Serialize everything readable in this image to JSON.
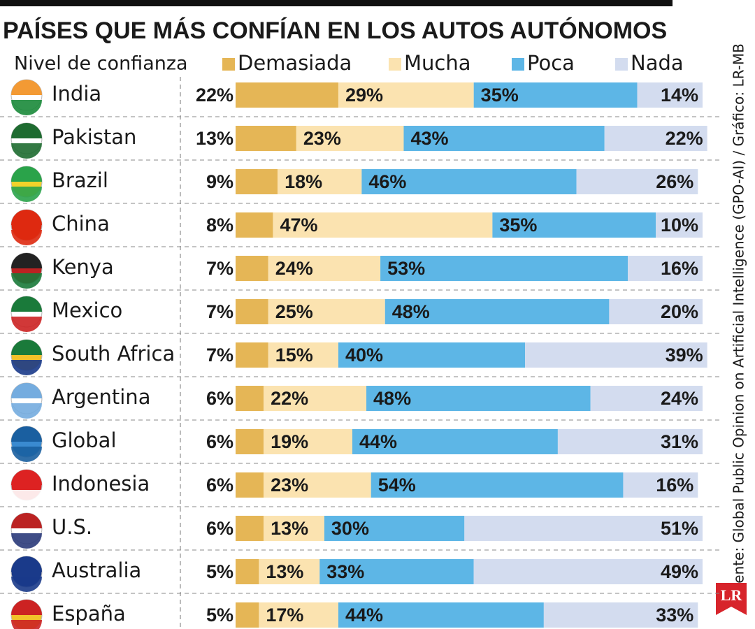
{
  "chart_data": {
    "type": "stacked-bar-horizontal",
    "title": "PAÍSES QUE MÁS CONFÍAN EN LOS AUTOS AUTÓNOMOS",
    "legend_title": "Nivel de confianza",
    "source": "Fuente: Global Public Opinion on Artificial Intelligence (GPO-AI) / Gráfico: LR-MB",
    "logo": "LR",
    "categories": [
      "India",
      "Pakistan",
      "Brazil",
      "China",
      "Kenya",
      "Mexico",
      "South Africa",
      "Argentina",
      "Global",
      "Indonesia",
      "U.S.",
      "Australia",
      "España"
    ],
    "series": [
      {
        "name": "Demasiada",
        "color": "#e5b656",
        "values": [
          22,
          13,
          9,
          8,
          7,
          7,
          7,
          6,
          6,
          6,
          6,
          5,
          5
        ],
        "value_labels": [
          "22%",
          "13%",
          "9%",
          "8%",
          "7%",
          "7%",
          "7%",
          "6%",
          "6%",
          "6%",
          "6%",
          "5%",
          "5%"
        ]
      },
      {
        "name": "Mucha",
        "color": "#fbe3b0",
        "values": [
          29,
          23,
          18,
          47,
          24,
          25,
          15,
          22,
          19,
          23,
          13,
          13,
          17
        ],
        "value_labels": [
          "29%",
          "23%",
          "18%",
          "47%",
          "24%",
          "25%",
          "15%",
          "22%",
          "19%",
          "23%",
          "13%",
          "13%",
          "17%"
        ]
      },
      {
        "name": "Poca",
        "color": "#5db6e6",
        "values": [
          35,
          43,
          46,
          35,
          53,
          48,
          40,
          48,
          44,
          54,
          30,
          33,
          44
        ],
        "value_labels": [
          "35%",
          "43%",
          "46%",
          "35%",
          "53%",
          "48%",
          "40%",
          "48%",
          "44%",
          "54%",
          "30%",
          "33%",
          "44%"
        ]
      },
      {
        "name": "Nada",
        "color": "#d3dcef",
        "values": [
          14,
          22,
          26,
          10,
          16,
          20,
          39,
          24,
          31,
          16,
          51,
          49,
          33
        ],
        "value_labels": [
          "14%",
          "22%",
          "26%",
          "10%",
          "16%",
          "20%",
          "39%",
          "24%",
          "31%",
          "16%",
          "51%",
          "49%",
          "33%"
        ]
      }
    ]
  }
}
